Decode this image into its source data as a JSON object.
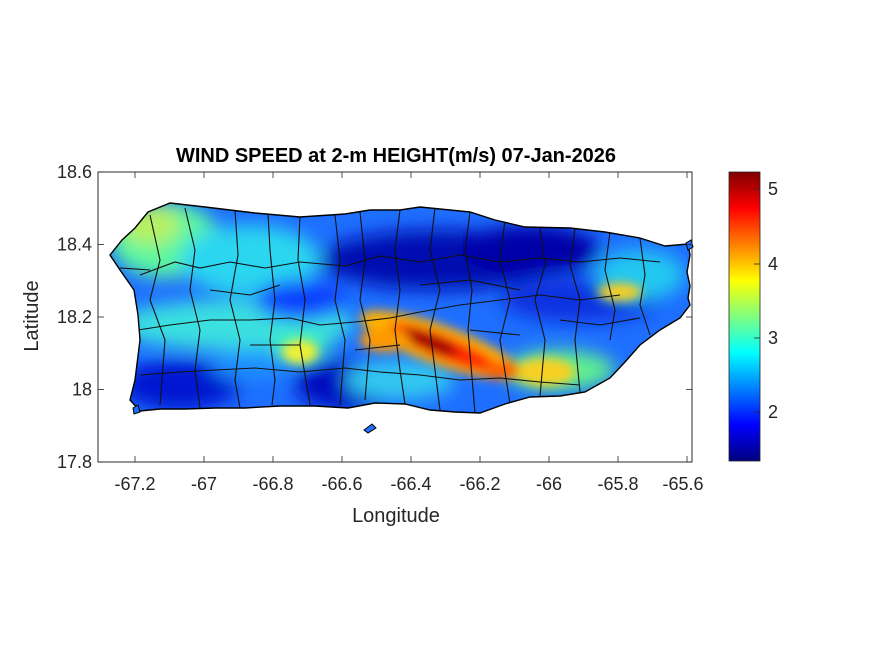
{
  "title": "WIND SPEED at 2-m HEIGHT(m/s) 07-Jan-2026",
  "xlabel": "Longitude",
  "ylabel": "Latitude",
  "xticks": [
    "-67.2",
    "-67",
    "-66.8",
    "-66.6",
    "-66.4",
    "-66.2",
    "-66",
    "-65.8",
    "-65.6"
  ],
  "yticks": [
    "18.6",
    "18.4",
    "18.2",
    "18"
  ],
  "yticks_bottom": "17.8",
  "colorbar": {
    "ticks": [
      "5",
      "4",
      "3",
      "2"
    ],
    "min": 1.3,
    "max": 5.3,
    "colormap": "jet",
    "colors": [
      "#00007f",
      "#0000ff",
      "#007fff",
      "#00ffff",
      "#7fff7f",
      "#ffff00",
      "#ff7f00",
      "#ff0000",
      "#7f0000"
    ]
  },
  "chart_data": {
    "type": "heatmap",
    "title": "WIND SPEED at 2-m HEIGHT(m/s) 07-Jan-2026",
    "xlabel": "Longitude",
    "ylabel": "Latitude",
    "xlim": [
      -67.3,
      -65.58
    ],
    "ylim": [
      17.8,
      18.6
    ],
    "value_range": [
      1.3,
      5.3
    ],
    "units": "m/s",
    "region": "Puerto Rico",
    "features": [
      {
        "lon": -66.35,
        "lat": 18.1,
        "value": 5.1
      },
      {
        "lon": -66.15,
        "lat": 18.05,
        "value": 4.3
      },
      {
        "lon": -65.78,
        "lat": 18.26,
        "value": 3.8
      },
      {
        "lon": -67.12,
        "lat": 18.47,
        "value": 3.5
      },
      {
        "lon": -66.75,
        "lat": 18.1,
        "value": 3.6
      },
      {
        "lon": -66.3,
        "lat": 18.42,
        "value": 1.3
      },
      {
        "lon": -67.15,
        "lat": 18.0,
        "value": 1.6
      },
      {
        "lon": -66.6,
        "lat": 18.0,
        "value": 1.7
      }
    ]
  }
}
